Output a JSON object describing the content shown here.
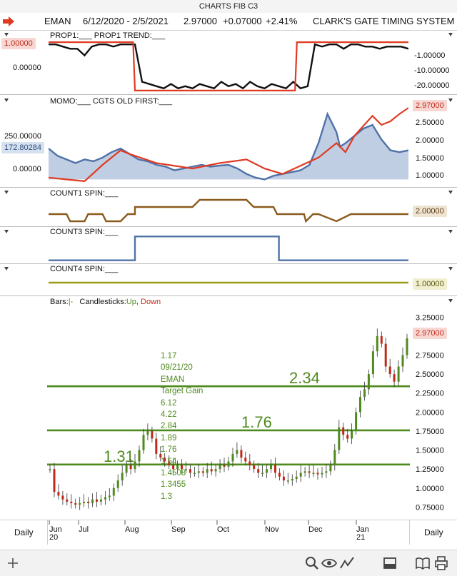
{
  "window": {
    "title": "CHARTS FIB C3"
  },
  "header": {
    "symbol": "EMAN",
    "date_range": "6/12/2020 - 2/5/2021",
    "last": "2.97000",
    "change": "+0.07000",
    "change_pct": "+2.41%",
    "system_name": "CLARK'S GATE TIMING SYSTEM"
  },
  "colors": {
    "red": "#e03a22",
    "black": "#111111",
    "blue": "#4f72a8",
    "brown": "#8b5a1e",
    "olive": "#9a9a1a",
    "green": "#4f8a1e",
    "tag_red_bg": "#f8d7d3",
    "tag_blue_bg": "#d6e1f0",
    "tag_brown_bg": "#efe3d2",
    "tag_olive_bg": "#f0efcf"
  },
  "panels": {
    "prop1": {
      "title": "PROP1:___  PROP1 TREND:___",
      "left_tag": "1.00000",
      "left_axis": [
        "0.00000"
      ],
      "right_axis": [
        "-1.00000",
        "-10.00000",
        "-20.00000"
      ]
    },
    "momo": {
      "title": "MOMO:___  CGTS OLD FIRST:___",
      "left_tag": "172.80284",
      "left_axis": [
        "250.00000",
        "0.00000"
      ],
      "right_tag": "2.97000",
      "right_axis": [
        "2.50000",
        "2.00000",
        "1.50000",
        "1.00000"
      ]
    },
    "count1": {
      "title": "COUNT1 SPIN:___",
      "right_tag": "2.00000"
    },
    "count3": {
      "title": "COUNT3 SPIN:___"
    },
    "count4": {
      "title": "COUNT4 SPIN:___",
      "right_tag": "1.00000"
    },
    "price": {
      "legend_bars": "Bars:",
      "legend_bars_glyph": "|-",
      "legend_candles": "Candlesticks:",
      "legend_up": "Up",
      "legend_down": "Down",
      "right_tag": "2.97000",
      "annotation": [
        "1.17",
        "09/21/20",
        "EMAN",
        "Target Gain",
        "6.12",
        "4.22",
        "2.84",
        "1.89",
        "1.76",
        "1.54",
        "1.4508",
        "1.3455",
        "1.3"
      ],
      "level_labels": [
        "2.34",
        "1.76",
        "1.31"
      ]
    }
  },
  "footer": {
    "left": "Daily",
    "right": "Daily",
    "months": [
      "Jun",
      "Jul",
      "Aug",
      "Sep",
      "Oct",
      "Nov",
      "Dec",
      "Jan"
    ],
    "year_labels": [
      "20",
      "21"
    ]
  },
  "toolbar": {
    "items": [
      "add-icon",
      "search-icon",
      "eye-icon",
      "indicator-icon",
      "panel-icon",
      "book-icon",
      "print-icon"
    ]
  },
  "chart_data": [
    {
      "type": "line",
      "panel": "PROP1",
      "series": [
        {
          "name": "PROP1",
          "color": "#111111",
          "x": [
            0,
            4,
            8,
            12,
            16,
            20,
            24,
            28,
            32,
            36,
            40,
            44,
            48,
            52,
            56,
            60,
            64,
            68,
            72,
            76,
            80,
            84,
            88,
            92,
            96,
            100,
            104,
            108,
            112,
            116,
            120,
            124,
            128,
            132,
            136,
            140,
            144,
            148,
            152,
            156,
            160,
            164,
            168,
            172,
            176,
            180,
            184,
            188,
            192,
            196,
            200
          ],
          "values": [
            -1,
            -1,
            -2,
            -3,
            -3,
            -6,
            -2,
            -1,
            -1,
            -2,
            -1,
            -1,
            -1,
            -18,
            -19,
            -20,
            -21,
            -19,
            -21,
            -20,
            -21,
            -19,
            -20,
            -21,
            -18,
            -20,
            -19,
            -21,
            -18,
            -20,
            -21,
            -19,
            -20,
            -21,
            -18,
            -21,
            -20,
            -1,
            -2,
            -1,
            -1,
            -3,
            -1,
            -1,
            -2,
            -2,
            -3,
            -2,
            -2,
            -2,
            -3
          ]
        },
        {
          "name": "PROP1 TREND",
          "color": "#e03a22",
          "x": [
            0,
            47,
            48,
            137,
            138,
            200
          ],
          "values": [
            0,
            0,
            -22,
            -22,
            0,
            0
          ]
        }
      ]
    },
    {
      "type": "area",
      "panel": "MOMO",
      "series": [
        {
          "name": "MOMO",
          "color": "#4f72a8",
          "x": [
            0,
            5,
            10,
            15,
            20,
            25,
            30,
            35,
            40,
            45,
            50,
            55,
            60,
            65,
            70,
            75,
            80,
            85,
            90,
            95,
            100,
            105,
            110,
            115,
            120,
            125,
            130,
            135,
            140,
            145,
            150,
            155,
            160,
            162,
            165,
            170,
            175,
            180,
            185,
            190,
            195,
            200
          ],
          "values": [
            1.85,
            1.65,
            1.55,
            1.45,
            1.55,
            1.5,
            1.6,
            1.75,
            1.85,
            1.7,
            1.55,
            1.5,
            1.4,
            1.35,
            1.25,
            1.3,
            1.35,
            1.4,
            1.35,
            1.38,
            1.4,
            1.3,
            1.15,
            1.05,
            1.0,
            1.1,
            1.15,
            1.2,
            1.25,
            1.4,
            2.0,
            2.8,
            2.3,
            1.9,
            2.0,
            2.2,
            2.4,
            2.5,
            2.1,
            1.8,
            1.75,
            1.8
          ]
        },
        {
          "name": "CGTS OLD FIRST",
          "color": "#e03a22",
          "x": [
            0,
            10,
            20,
            30,
            40,
            45,
            60,
            80,
            95,
            110,
            120,
            130,
            150,
            160,
            165,
            170,
            180,
            185,
            190,
            195,
            200
          ],
          "values": [
            1.05,
            1.0,
            0.95,
            1.4,
            1.8,
            1.7,
            1.45,
            1.3,
            1.45,
            1.55,
            1.3,
            1.15,
            1.6,
            2.0,
            1.75,
            2.2,
            2.75,
            2.5,
            2.6,
            2.8,
            2.97
          ]
        }
      ]
    },
    {
      "type": "line",
      "panel": "COUNT1",
      "series": [
        {
          "name": "COUNT1 SPIN",
          "color": "#8b5a1e",
          "x": [
            0,
            10,
            12,
            20,
            22,
            30,
            32,
            40,
            44,
            48,
            48,
            80,
            84,
            110,
            114,
            125,
            127,
            142,
            143,
            147,
            150,
            160,
            168,
            200
          ],
          "values": [
            2,
            2,
            1,
            1,
            2,
            2,
            1,
            1,
            2,
            2,
            3,
            3,
            4,
            4,
            3,
            3,
            2,
            2,
            1,
            2,
            2,
            1,
            2,
            2
          ]
        }
      ]
    },
    {
      "type": "line",
      "panel": "COUNT3",
      "series": [
        {
          "name": "COUNT3 SPIN",
          "color": "#4f72a8",
          "x": [
            0,
            48,
            48,
            128,
            128,
            200
          ],
          "values": [
            0,
            0,
            1,
            1,
            0,
            0
          ]
        }
      ]
    },
    {
      "type": "line",
      "panel": "COUNT4",
      "series": [
        {
          "name": "COUNT4 SPIN",
          "color": "#9a9a1a",
          "x": [
            0,
            200
          ],
          "values": [
            1,
            1
          ]
        }
      ]
    },
    {
      "type": "bar",
      "panel": "Price (Bars / Candlesticks)",
      "ylim": [
        0.65,
        3.3
      ],
      "levels": [
        2.34,
        1.76,
        1.31
      ],
      "last": 2.97,
      "close": [
        1.25,
        0.95,
        0.9,
        0.85,
        0.82,
        0.8,
        0.78,
        0.8,
        0.82,
        0.8,
        0.85,
        0.82,
        0.85,
        0.88,
        0.9,
        1.0,
        1.1,
        1.2,
        1.3,
        1.25,
        1.35,
        1.5,
        1.7,
        1.75,
        1.65,
        1.45,
        1.4,
        1.35,
        1.3,
        1.25,
        1.3,
        1.25,
        1.25,
        1.2,
        1.2,
        1.22,
        1.2,
        1.25,
        1.22,
        1.25,
        1.3,
        1.28,
        1.35,
        1.45,
        1.5,
        1.4,
        1.35,
        1.3,
        1.25,
        1.2,
        1.2,
        1.25,
        1.3,
        1.2,
        1.15,
        1.1,
        1.1,
        1.12,
        1.15,
        1.2,
        1.22,
        1.2,
        1.2,
        1.18,
        1.2,
        1.22,
        1.3,
        1.5,
        1.8,
        1.7,
        1.65,
        1.75,
        2.0,
        2.2,
        2.3,
        2.5,
        2.8,
        3.0,
        2.9,
        2.6,
        2.5,
        2.4,
        2.6,
        2.75,
        2.97
      ]
    }
  ]
}
